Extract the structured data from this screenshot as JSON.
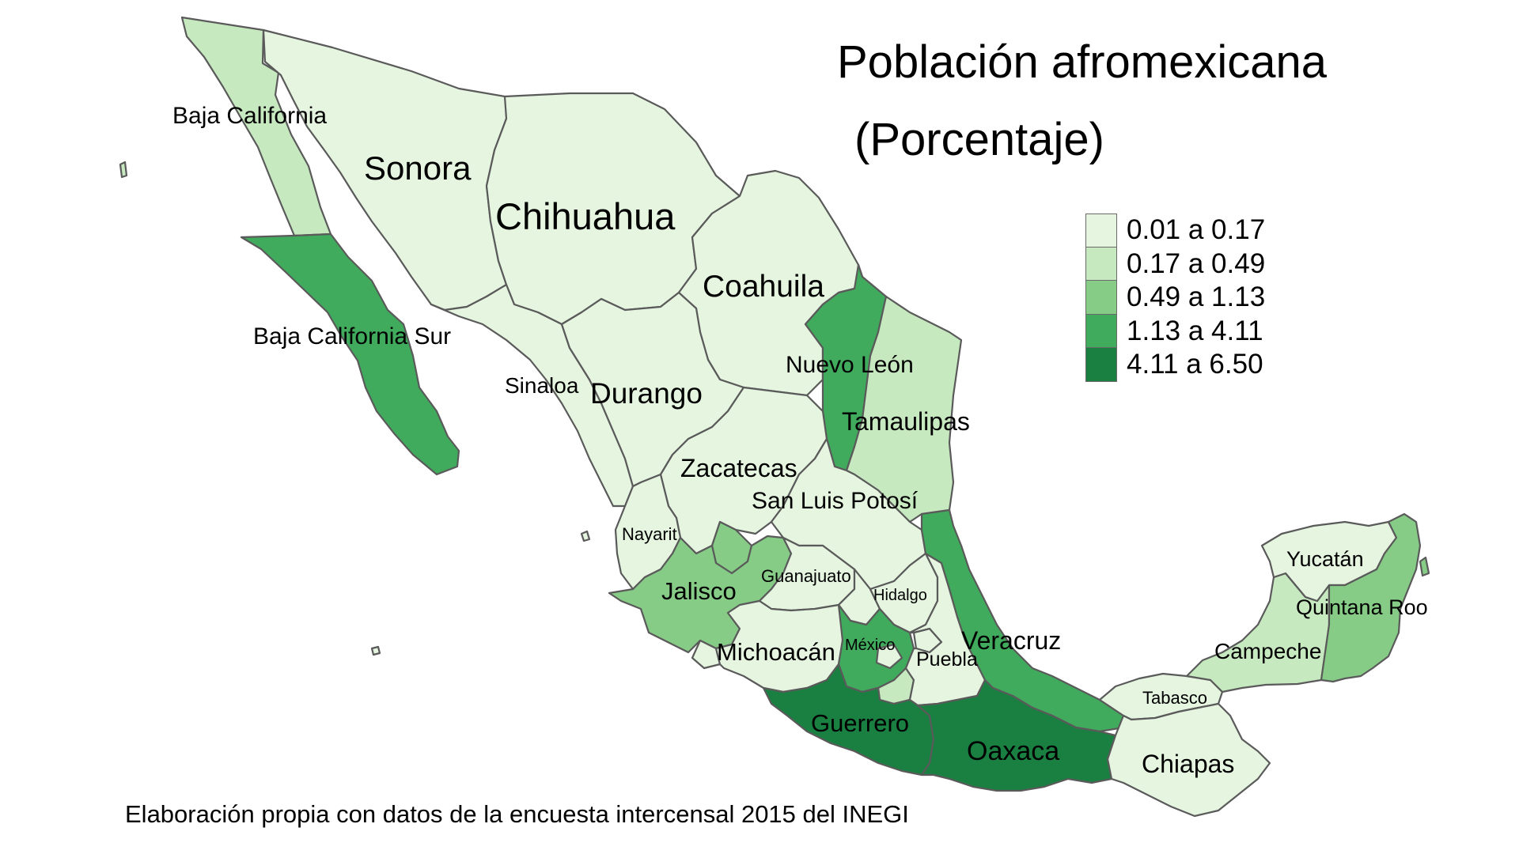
{
  "title_line1": "Población afromexicana",
  "title_line2": "(Porcentaje)",
  "caption": "Elaboración propia con datos de la encuesta intercensal 2015 del INEGI",
  "palette": [
    "#e5f5e0",
    "#c7e9c0",
    "#86cc86",
    "#41ab5d",
    "#1a8041"
  ],
  "legend": [
    {
      "label": "0.01 a 0.17",
      "class": 0
    },
    {
      "label": "0.17 a 0.49",
      "class": 1
    },
    {
      "label": "0.49 a 1.13",
      "class": 2
    },
    {
      "label": "1.13 a 4.11",
      "class": 3
    },
    {
      "label": "4.11 a 6.50",
      "class": 4
    }
  ],
  "states": [
    {
      "id": "baja-california",
      "label": "Baja California",
      "class": 1
    },
    {
      "id": "baja-california-sur",
      "label": "Baja California Sur",
      "class": 3
    },
    {
      "id": "sonora",
      "label": "Sonora",
      "class": 0
    },
    {
      "id": "chihuahua",
      "label": "Chihuahua",
      "class": 0
    },
    {
      "id": "coahuila",
      "label": "Coahuila",
      "class": 0
    },
    {
      "id": "nuevo-leon",
      "label": "Nuevo León",
      "class": 3
    },
    {
      "id": "tamaulipas",
      "label": "Tamaulipas",
      "class": 1
    },
    {
      "id": "sinaloa",
      "label": "Sinaloa",
      "class": 0
    },
    {
      "id": "durango",
      "label": "Durango",
      "class": 0
    },
    {
      "id": "zacatecas",
      "label": "Zacatecas",
      "class": 0
    },
    {
      "id": "san-luis-potosi",
      "label": "San Luis Potosí",
      "class": 0
    },
    {
      "id": "nayarit",
      "label": "Nayarit",
      "class": 0
    },
    {
      "id": "aguascalientes",
      "label": "",
      "class": 2
    },
    {
      "id": "jalisco",
      "label": "Jalisco",
      "class": 2
    },
    {
      "id": "guanajuato",
      "label": "Guanajuato",
      "class": 0
    },
    {
      "id": "queretaro",
      "label": "",
      "class": 0
    },
    {
      "id": "hidalgo",
      "label": "Hidalgo",
      "class": 0
    },
    {
      "id": "colima",
      "label": "",
      "class": 0
    },
    {
      "id": "michoacan",
      "label": "Michoacán",
      "class": 0
    },
    {
      "id": "mexico",
      "label": "México",
      "class": 3
    },
    {
      "id": "cdmx",
      "label": "",
      "class": 0
    },
    {
      "id": "morelos",
      "label": "",
      "class": 1
    },
    {
      "id": "tlaxcala",
      "label": "",
      "class": 0
    },
    {
      "id": "puebla",
      "label": "Puebla",
      "class": 0
    },
    {
      "id": "veracruz",
      "label": "Veracruz",
      "class": 3
    },
    {
      "id": "guerrero",
      "label": "Guerrero",
      "class": 4
    },
    {
      "id": "oaxaca",
      "label": "Oaxaca",
      "class": 4
    },
    {
      "id": "tabasco",
      "label": "Tabasco",
      "class": 0
    },
    {
      "id": "chiapas",
      "label": "Chiapas",
      "class": 0
    },
    {
      "id": "campeche",
      "label": "Campeche",
      "class": 1
    },
    {
      "id": "yucatan",
      "label": "Yucatán",
      "class": 0
    },
    {
      "id": "quintana-roo",
      "label": "Quintana Roo",
      "class": 2
    }
  ]
}
